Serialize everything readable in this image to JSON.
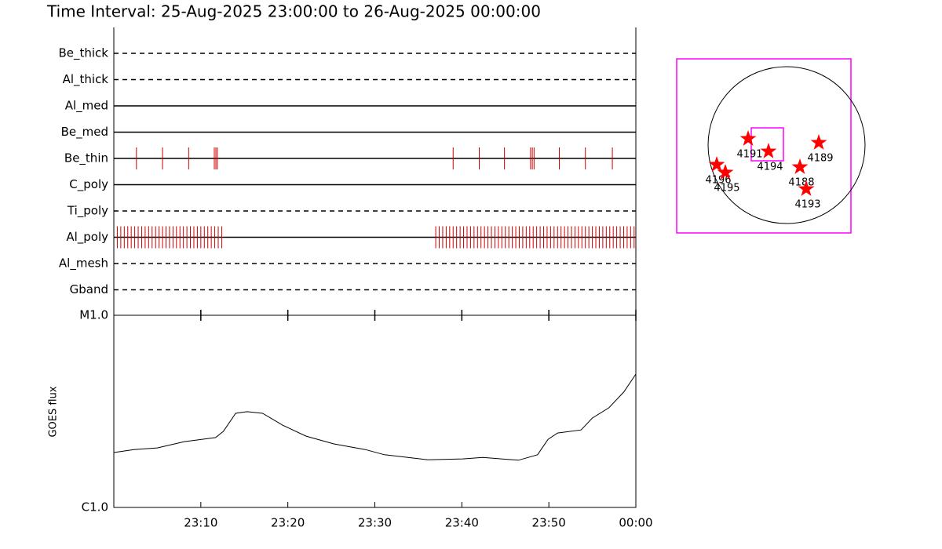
{
  "chart_data": {
    "type": "timeline",
    "title": "Time Interval: 25-Aug-2025 23:00:00 to 26-Aug-2025 00:00:00",
    "xlim": [
      0,
      60
    ],
    "xticks": [
      {
        "value": 10,
        "label": "23:10"
      },
      {
        "value": 20,
        "label": "23:20"
      },
      {
        "value": 30,
        "label": "23:30"
      },
      {
        "value": 40,
        "label": "23:40"
      },
      {
        "value": 50,
        "label": "23:50"
      },
      {
        "value": 60,
        "label": "00:00"
      }
    ],
    "event_color": "#cc0000",
    "filters": [
      {
        "name": "Be_thick",
        "style": "dashed",
        "events": []
      },
      {
        "name": "Al_thick",
        "style": "dashed",
        "events": []
      },
      {
        "name": "Al_med",
        "style": "solid",
        "events": []
      },
      {
        "name": "Be_med",
        "style": "solid",
        "events": []
      },
      {
        "name": "Be_thin",
        "style": "solid",
        "events": [
          2.6,
          5.6,
          8.6,
          11.55,
          11.73,
          11.9,
          39.0,
          42.0,
          44.9,
          47.9,
          48.1,
          48.3,
          51.2,
          54.2,
          57.3
        ]
      },
      {
        "name": "C_poly",
        "style": "solid",
        "events": []
      },
      {
        "name": "Ti_poly",
        "style": "dashed",
        "events": []
      },
      {
        "name": "Al_poly",
        "style": "solid",
        "events": [
          0.4,
          0.8,
          1.2,
          1.6,
          2.0,
          2.4,
          2.8,
          3.2,
          3.6,
          4.0,
          4.4,
          4.8,
          5.2,
          5.6,
          6.0,
          6.4,
          6.8,
          7.2,
          7.6,
          8.0,
          8.4,
          8.8,
          9.2,
          9.6,
          10.0,
          10.4,
          10.8,
          11.2,
          11.6,
          12.0,
          12.4,
          37.0,
          37.4,
          37.8,
          38.2,
          38.6,
          39.0,
          39.4,
          39.8,
          40.2,
          40.6,
          41.0,
          41.4,
          41.8,
          42.2,
          42.6,
          43.0,
          43.4,
          43.8,
          44.2,
          44.6,
          45.0,
          45.4,
          45.8,
          46.2,
          46.6,
          47.0,
          47.4,
          47.8,
          48.2,
          48.6,
          49.0,
          49.4,
          49.8,
          50.2,
          50.6,
          51.0,
          51.4,
          51.8,
          52.2,
          52.6,
          53.0,
          53.4,
          53.8,
          54.2,
          54.6,
          55.0,
          55.4,
          55.8,
          56.2,
          56.6,
          57.0,
          57.4,
          57.8,
          58.2,
          58.6,
          59.0,
          59.4,
          59.8
        ]
      },
      {
        "name": "Al_mesh",
        "style": "dashed",
        "events": []
      },
      {
        "name": "Gband",
        "style": "dashed",
        "events": []
      }
    ],
    "goes": {
      "ylabel": "GOES flux",
      "log_scale": true,
      "ylim": [
        1e-06,
        1e-05
      ],
      "yticks": [
        {
          "value": 1e-06,
          "label": "C1.0"
        },
        {
          "value": 1e-05,
          "label": "M1.0"
        }
      ],
      "x": [
        0,
        2.3,
        5.0,
        8.1,
        11.7,
        12.6,
        14.0,
        15.3,
        17.1,
        19.4,
        22.1,
        25.3,
        28.9,
        31.1,
        36.1,
        40.1,
        42.4,
        46.5,
        48.7,
        49.9,
        51.0,
        53.7,
        55.0,
        56.9,
        58.6,
        60
      ],
      "values": [
        1.93e-06,
        2e-06,
        2.04e-06,
        2.2e-06,
        2.31e-06,
        2.49e-06,
        3.09e-06,
        3.15e-06,
        3.09e-06,
        2.68e-06,
        2.35e-06,
        2.14e-06,
        2e-06,
        1.88e-06,
        1.77e-06,
        1.79e-06,
        1.82e-06,
        1.76e-06,
        1.88e-06,
        2.26e-06,
        2.44e-06,
        2.53e-06,
        2.92e-06,
        3.3e-06,
        3.98e-06,
        4.94e-06
      ],
      "color": "#000000"
    },
    "map": {
      "star_color": "#ff0000",
      "box_color": "#ff00ff",
      "regions": [
        {
          "label": "4191",
          "x": -470,
          "y": 77
        },
        {
          "label": "4194",
          "x": -221,
          "y": -77
        },
        {
          "label": "4189",
          "x": 394,
          "y": 29
        },
        {
          "label": "4188",
          "x": 163,
          "y": -269
        },
        {
          "label": "4193",
          "x": 240,
          "y": -538
        },
        {
          "label": "4196",
          "x": -854,
          "y": -240
        },
        {
          "label": "4195",
          "x": -749,
          "y": -336
        }
      ]
    }
  }
}
